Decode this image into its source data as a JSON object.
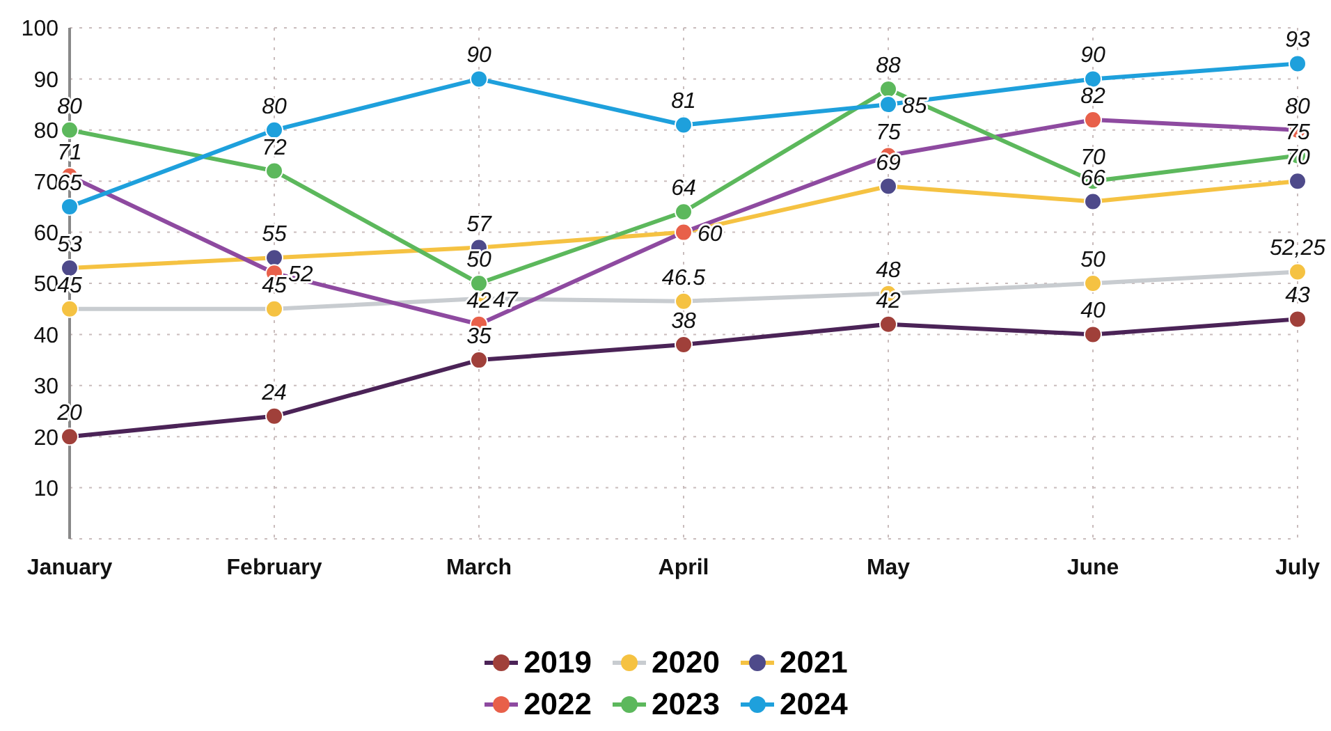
{
  "chart_data": {
    "type": "line",
    "categories": [
      "January",
      "February",
      "March",
      "April",
      "May",
      "June",
      "July"
    ],
    "series": [
      {
        "name": "2019",
        "color": "#4b2357",
        "colors": [
          "#a0403a",
          "#a0403a",
          "#a0403a",
          "#a0403a",
          "#a0403a",
          "#a0403a",
          "#a0403a"
        ],
        "values": [
          20,
          24,
          35,
          38,
          42,
          40,
          43
        ],
        "value_labels": [
          "20",
          "24",
          "35",
          "38",
          "42",
          "40",
          "43"
        ]
      },
      {
        "name": "2020",
        "color": "#c8ccd0",
        "colors": [
          "#f5c242",
          "#f5c242",
          "#f5c242",
          "#f5c242",
          "#f5c242",
          "#f5c242",
          "#f5c242"
        ],
        "values": [
          45,
          45,
          47,
          46.5,
          48,
          50,
          52.25
        ],
        "value_labels": [
          "45",
          "45",
          "47",
          "46.5",
          "48",
          "50",
          "52,25"
        ]
      },
      {
        "name": "2021",
        "color": "#f5c242",
        "colors": [
          "#4e4a8a",
          "#4e4a8a",
          "#4e4a8a",
          "#4e4a8a",
          "#4e4a8a",
          "#4e4a8a",
          "#4e4a8a"
        ],
        "values": [
          53,
          55,
          57,
          60,
          69,
          66,
          70
        ],
        "value_labels": [
          "53",
          "55",
          "57",
          "60",
          "69",
          "66",
          "70"
        ]
      },
      {
        "name": "2022",
        "color": "#8e4aa0",
        "colors": [
          "#e8604a",
          "#e8604a",
          "#e8604a",
          "#e8604a",
          "#e8604a",
          "#e8604a",
          "#e8604a"
        ],
        "values": [
          71,
          52,
          42,
          60,
          75,
          82,
          80
        ],
        "value_labels": [
          "71",
          "52",
          "42",
          null,
          "75",
          "82",
          "80"
        ]
      },
      {
        "name": "2023",
        "color": "#5cb85c",
        "colors": [
          "#5cb85c",
          "#5cb85c",
          "#5cb85c",
          "#5cb85c",
          "#5cb85c",
          "#5cb85c",
          "#5cb85c"
        ],
        "values": [
          80,
          72,
          50,
          64,
          88,
          70,
          75
        ],
        "value_labels": [
          "80",
          "72",
          "50",
          "64",
          "88",
          "70",
          "75"
        ]
      },
      {
        "name": "2024",
        "color": "#1ea0dc",
        "colors": [
          "#1ea0dc",
          "#1ea0dc",
          "#1ea0dc",
          "#1ea0dc",
          "#1ea0dc",
          "#1ea0dc",
          "#1ea0dc"
        ],
        "values": [
          65,
          80,
          90,
          81,
          85,
          90,
          93
        ],
        "value_labels": [
          "65",
          "80",
          "90",
          "81",
          "85",
          "90",
          "93"
        ]
      }
    ],
    "ylim": [
      0,
      100
    ],
    "yticks": [
      {
        "value": 0,
        "label": null
      },
      10,
      20,
      30,
      40,
      50,
      60,
      70,
      80,
      90,
      100
    ],
    "grid": true,
    "legend": "bottom",
    "marker": "circle",
    "line_style": "solid"
  }
}
